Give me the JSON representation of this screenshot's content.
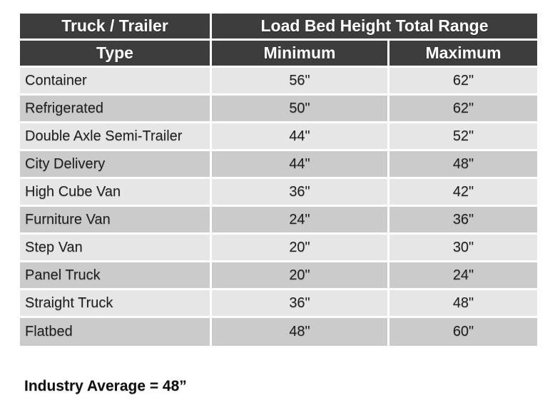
{
  "table": {
    "header": {
      "truck_trailer": "Truck / Trailer",
      "load_bed_range": "Load Bed Height Total Range",
      "type": "Type",
      "minimum": "Minimum",
      "maximum": "Maximum"
    },
    "rows": [
      {
        "type": "Container",
        "min": "56\"",
        "max": "62\""
      },
      {
        "type": "Refrigerated",
        "min": "50\"",
        "max": "62\""
      },
      {
        "type": "Double Axle Semi-Trailer",
        "min": "44\"",
        "max": "52\""
      },
      {
        "type": "City Delivery",
        "min": "44\"",
        "max": "48\""
      },
      {
        "type": "High Cube Van",
        "min": "36\"",
        "max": "42\""
      },
      {
        "type": "Furniture Van",
        "min": "24\"",
        "max": "36\""
      },
      {
        "type": "Step Van",
        "min": "20\"",
        "max": "30\""
      },
      {
        "type": "Panel Truck",
        "min": "20\"",
        "max": "24\""
      },
      {
        "type": "Straight Truck",
        "min": "36\"",
        "max": "48\""
      },
      {
        "type": "Flatbed",
        "min": "48\"",
        "max": "60\""
      }
    ]
  },
  "footer": {
    "note": "Industry Average = 48”"
  },
  "colors": {
    "header_bg": "#3d3d3d",
    "header_text": "#ffffff",
    "row_light": "#e6e6e6",
    "row_dark": "#cbcbcb",
    "body_text": "#1f1f1f",
    "divider": "#ffffff"
  },
  "chart_data": {
    "type": "table",
    "title": "Load Bed Height Total Range",
    "columns": [
      "Truck / Trailer Type",
      "Minimum",
      "Maximum"
    ],
    "units": "inches",
    "rows": [
      [
        "Container",
        56,
        62
      ],
      [
        "Refrigerated",
        50,
        62
      ],
      [
        "Double Axle Semi-Trailer",
        44,
        52
      ],
      [
        "City Delivery",
        44,
        48
      ],
      [
        "High Cube Van",
        36,
        42
      ],
      [
        "Furniture Van",
        24,
        36
      ],
      [
        "Step Van",
        20,
        30
      ],
      [
        "Panel Truck",
        20,
        24
      ],
      [
        "Straight Truck",
        36,
        48
      ],
      [
        "Flatbed",
        48,
        60
      ]
    ],
    "annotation": "Industry Average = 48 inches"
  }
}
